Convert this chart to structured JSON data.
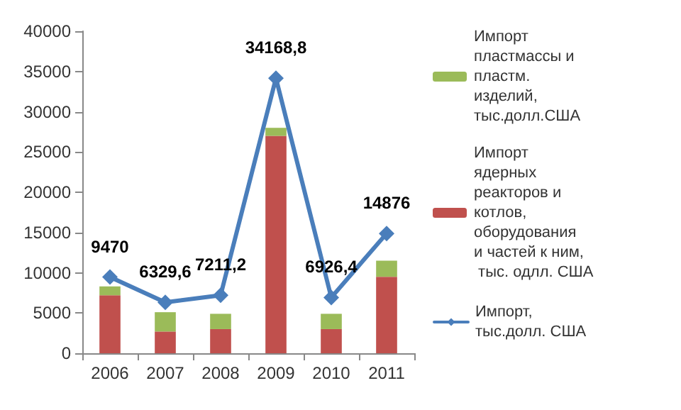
{
  "chart_data": {
    "type": "bar",
    "stacked": true,
    "categories": [
      "2006",
      "2007",
      "2008",
      "2009",
      "2010",
      "2011"
    ],
    "ylim": [
      0,
      40000
    ],
    "yticks": [
      0,
      5000,
      10000,
      15000,
      20000,
      25000,
      30000,
      35000,
      40000
    ],
    "grid": false,
    "legend": "right",
    "series": [
      {
        "name": "Импорт ядерных реакторов и котлов, оборудования и частей к ним, тыс. одлл. США",
        "color": "#c0504d",
        "values": [
          7200,
          2700,
          3000,
          27000,
          3000,
          9500
        ]
      },
      {
        "name": "Импорт пластмассы и пластм. изделий, тыс.долл.США",
        "color": "#9bbb59",
        "values": [
          1100,
          2400,
          1900,
          1000,
          1900,
          2000
        ]
      },
      {
        "name": "Импорт, тыс.долл. США",
        "type": "line",
        "color": "#4a7ebb",
        "marker": "diamond",
        "line_style": "solid",
        "values": [
          9470,
          6329.6,
          7211.2,
          34168.8,
          6926.4,
          14876
        ],
        "value_labels": [
          "9470",
          "6329,6",
          "7211,2",
          "34168,8",
          "6926,4",
          "14876"
        ]
      }
    ]
  }
}
